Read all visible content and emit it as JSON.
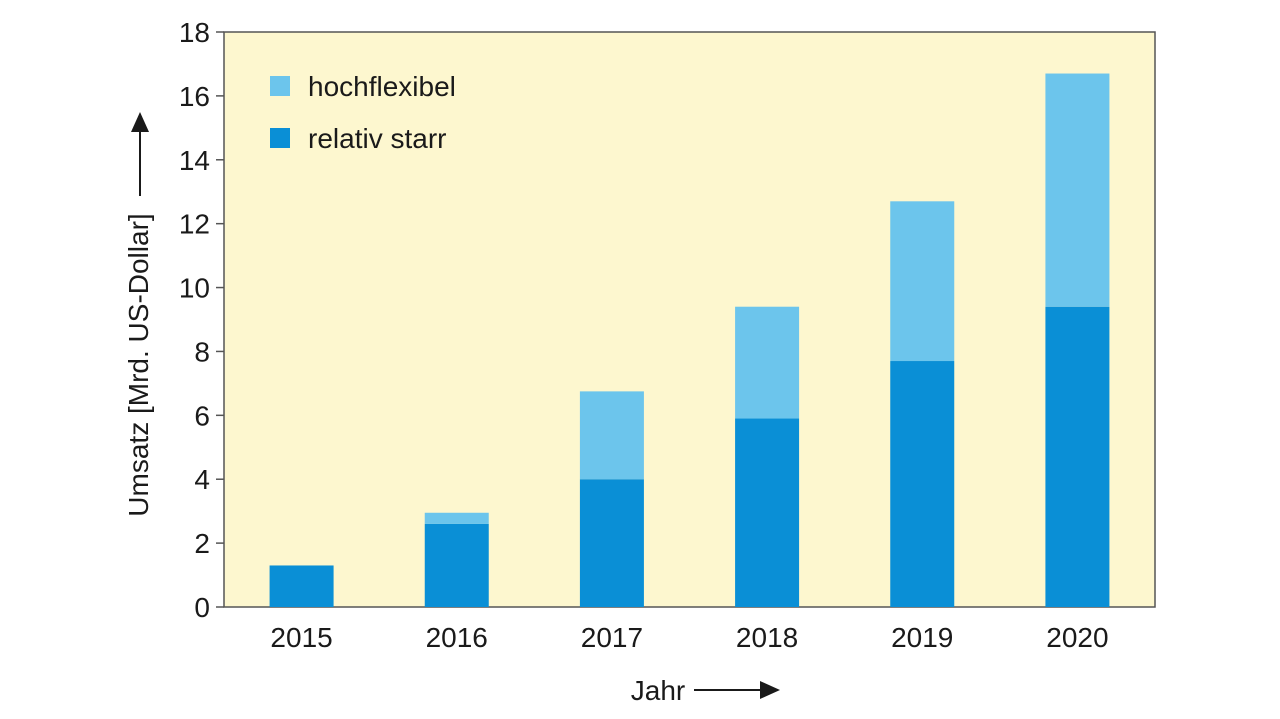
{
  "chart_data": {
    "type": "bar",
    "stacked": true,
    "categories": [
      "2015",
      "2016",
      "2017",
      "2018",
      "2019",
      "2020"
    ],
    "series": [
      {
        "name": "relativ starr",
        "color": "#0a8fd6",
        "values": [
          1.3,
          2.6,
          4.0,
          5.9,
          7.7,
          9.4
        ]
      },
      {
        "name": "hochflexibel",
        "color": "#6cc5ec",
        "values": [
          0.0,
          0.35,
          2.75,
          3.5,
          5.0,
          7.3
        ]
      }
    ],
    "xlabel": "Jahr",
    "ylabel": "Umsatz [Mrd. US-Dollar]",
    "ylim": [
      0,
      18
    ],
    "yticks": [
      "0",
      "2",
      "4",
      "6",
      "8",
      "10",
      "12",
      "14",
      "16",
      "18"
    ],
    "legend_order": [
      "hochflexibel",
      "relativ starr"
    ],
    "legend_position": "top-left",
    "plot_background": "#fdf7cf",
    "grid": false
  }
}
